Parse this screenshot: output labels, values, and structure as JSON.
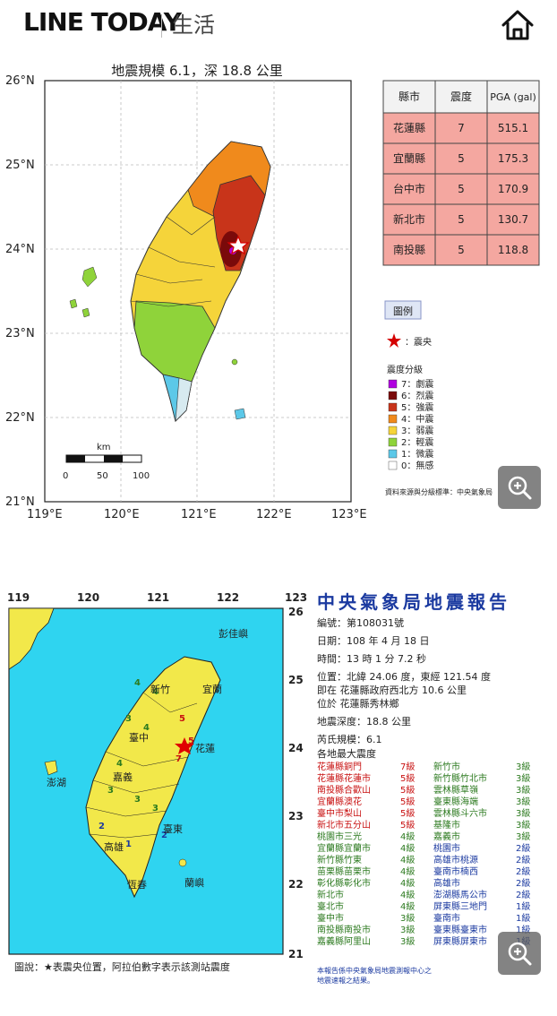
{
  "header": {
    "logo": "LINE TODAY",
    "section": "生活",
    "home_icon": "home-icon"
  },
  "map1": {
    "title": "地震規模 6.1，深 18.8 公里",
    "lat_labels": [
      "26°N",
      "25°N",
      "24°N",
      "23°N",
      "22°N",
      "21°N"
    ],
    "lon_labels": [
      "119°E",
      "120°E",
      "121°E",
      "122°E",
      "123°E"
    ],
    "scale_unit": "km",
    "scale_ticks": [
      "0",
      "50",
      "100"
    ],
    "table_headers": [
      "縣市",
      "震度",
      "PGA (gal)"
    ],
    "table_rows": [
      {
        "county": "花蓮縣",
        "intensity": "7",
        "pga": "515.1"
      },
      {
        "county": "宜蘭縣",
        "intensity": "5",
        "pga": "175.3"
      },
      {
        "county": "台中市",
        "intensity": "5",
        "pga": "170.9"
      },
      {
        "county": "新北市",
        "intensity": "5",
        "pga": "130.7"
      },
      {
        "county": "南投縣",
        "intensity": "5",
        "pga": "118.8"
      }
    ],
    "legend_title": "圖例",
    "epicenter_label": "：震央",
    "intensity_title": "震度分級",
    "intensity_levels": [
      {
        "label": "7：劇震",
        "color": "#b000e0"
      },
      {
        "label": "6：烈震",
        "color": "#7a0a0a"
      },
      {
        "label": "5：強震",
        "color": "#c8341a"
      },
      {
        "label": "4：中震",
        "color": "#f08a1c"
      },
      {
        "label": "3：弱震",
        "color": "#f5d43a"
      },
      {
        "label": "2：輕震",
        "color": "#8fd33a"
      },
      {
        "label": "1：微震",
        "color": "#5cc8e8"
      },
      {
        "label": "0：無感",
        "color": "#ffffff"
      }
    ],
    "source": "資料來源與分級標準：中央氣象局"
  },
  "map2": {
    "lon_labels": [
      "119",
      "120",
      "121",
      "122",
      "123"
    ],
    "lat_labels": [
      "26",
      "25",
      "24",
      "23",
      "22",
      "21"
    ],
    "place_names": [
      "彭佳嶼",
      "新竹",
      "宜蘭",
      "臺中",
      "花蓮",
      "嘉義",
      "澎湖",
      "臺東",
      "高雄",
      "恆春",
      "蘭嶼"
    ],
    "legend": "圖說：★表震央位置，阿拉伯數字表示該測站震度",
    "report_title": "中央氣象局地震報告",
    "number": "編號：第108031號",
    "date": "日期：108 年 4 月 18 日",
    "time": "時間：13 時 1 分 7.2 秒",
    "location": "位置：北緯 24.06 度，東經 121.54 度",
    "location2": "即在 花蓮縣政府西北方 10.6 公里",
    "location3": "位於 花蓮縣秀林鄉",
    "depth": "地震深度：18.8 公里",
    "magnitude": "芮氏規模：6.1",
    "max_title": "各地最大震度",
    "left_list": [
      {
        "place": "花蓮縣銅門",
        "level": "7級"
      },
      {
        "place": "花蓮縣花蓮市",
        "level": "5級"
      },
      {
        "place": "南投縣合歡山",
        "level": "5級"
      },
      {
        "place": "宜蘭縣澳花",
        "level": "5級"
      },
      {
        "place": "臺中市梨山",
        "level": "5級"
      },
      {
        "place": "新北市五分山",
        "level": "5級"
      },
      {
        "place": "桃園市三光",
        "level": "4級"
      },
      {
        "place": "宜蘭縣宜蘭市",
        "level": "4級"
      },
      {
        "place": "新竹縣竹東",
        "level": "4級"
      },
      {
        "place": "苗栗縣苗栗市",
        "level": "4級"
      },
      {
        "place": "彰化縣彰化市",
        "level": "4級"
      },
      {
        "place": "新北市",
        "level": "4級"
      },
      {
        "place": "臺北市",
        "level": "4級"
      },
      {
        "place": "臺中市",
        "level": "3級"
      },
      {
        "place": "南投縣南投市",
        "level": "3級"
      },
      {
        "place": "嘉義縣阿里山",
        "level": "3級"
      }
    ],
    "right_list": [
      {
        "place": "新竹市",
        "level": "3級"
      },
      {
        "place": "新竹縣竹北市",
        "level": "3級"
      },
      {
        "place": "雲林縣草嶺",
        "level": "3級"
      },
      {
        "place": "臺東縣海端",
        "level": "3級"
      },
      {
        "place": "雲林縣斗六市",
        "level": "3級"
      },
      {
        "place": "基隆市",
        "level": "3級"
      },
      {
        "place": "嘉義市",
        "level": "3級"
      },
      {
        "place": "桃園市",
        "level": "2級"
      },
      {
        "place": "高雄市桃源",
        "level": "2級"
      },
      {
        "place": "臺南市楠西",
        "level": "2級"
      },
      {
        "place": "高雄市",
        "level": "2級"
      },
      {
        "place": "澎湖縣馬公市",
        "level": "2級"
      },
      {
        "place": "屏東縣三地門",
        "level": "1級"
      },
      {
        "place": "臺南市",
        "level": "1級"
      },
      {
        "place": "臺東縣臺東市",
        "level": "1級"
      },
      {
        "place": "屏東縣屏東市",
        "level": "1級"
      }
    ],
    "footnote1": "本報告係中央氣象局地震測報中心之",
    "footnote2": "地震速報之結果。"
  },
  "zoom_icon": "zoom-in-icon"
}
